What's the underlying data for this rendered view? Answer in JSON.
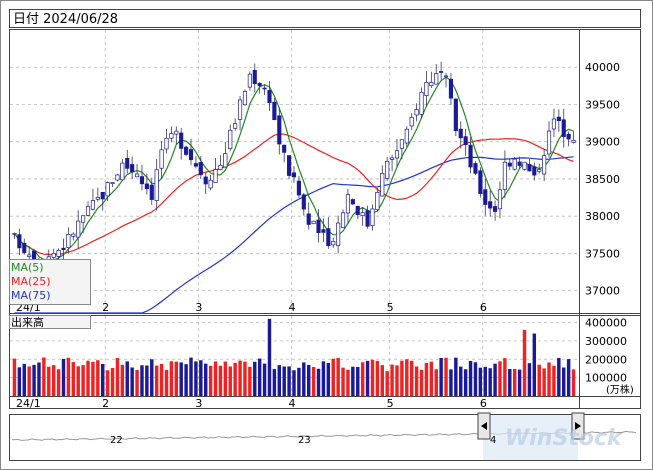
{
  "header": {
    "title": "日付 2024/06/28"
  },
  "legend": {
    "ma5": "MA(5)",
    "ma25": "MA(25)",
    "ma75": "MA(75)",
    "volume": "出来高"
  },
  "colors": {
    "ma5": "#228822",
    "ma25": "#ee2222",
    "ma75": "#2233cc",
    "up": "#ee2222",
    "down": "#1a1a99",
    "grid": "#bbbbbb",
    "frame": "#444444"
  },
  "price_axis": {
    "ticks": [
      "40000",
      "39500",
      "39000",
      "38500",
      "38000",
      "37500",
      "37000"
    ]
  },
  "volume_axis": {
    "ticks": [
      "400000",
      "300000",
      "200000",
      "100000"
    ],
    "unit": "(万株)"
  },
  "x_axis": {
    "labels": [
      "24/1",
      "2",
      "3",
      "4",
      "5",
      "6"
    ]
  },
  "navigator": {
    "year_labels": [
      "22",
      "23",
      "4"
    ],
    "watermark": "WinStock"
  },
  "chart_data": {
    "type": "candlestick",
    "period": "2024/01 - 2024/06 (daily)",
    "month_labels": [
      "24/1",
      "2",
      "3",
      "4",
      "5",
      "6"
    ],
    "ylim": [
      36700,
      40500
    ],
    "volume_ylim": [
      0,
      430000
    ],
    "ohlc": [],
    "volume": [],
    "ma5": [],
    "ma25": [],
    "ma75": []
  }
}
